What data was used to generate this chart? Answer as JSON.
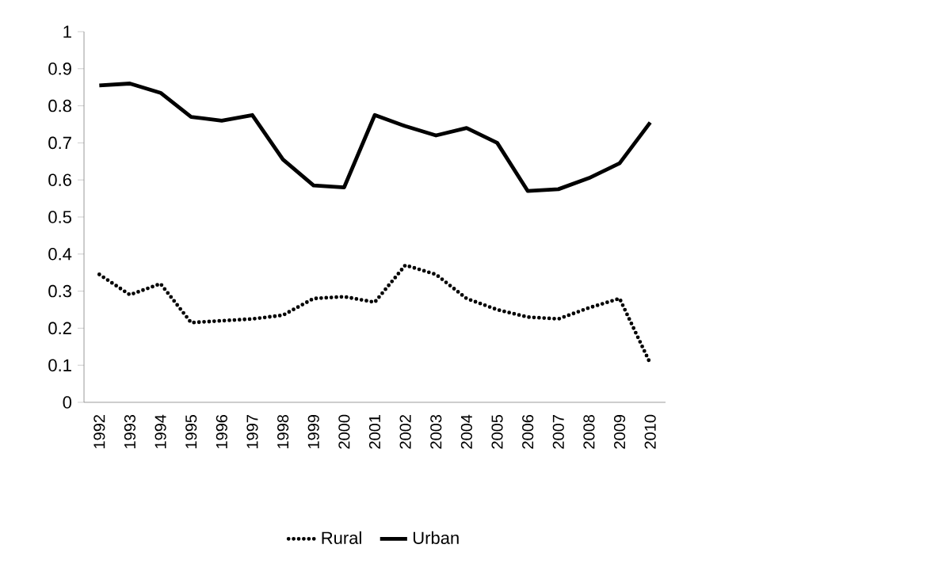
{
  "chart_data": {
    "type": "line",
    "categories": [
      "1992",
      "1993",
      "1994",
      "1995",
      "1996",
      "1997",
      "1998",
      "1999",
      "2000",
      "2001",
      "2002",
      "2003",
      "2004",
      "2005",
      "2006",
      "2007",
      "2008",
      "2009",
      "2010"
    ],
    "series": [
      {
        "name": "Rural",
        "color": "#000000",
        "line_style": "dotted",
        "values": [
          0.345,
          0.29,
          0.32,
          0.215,
          0.22,
          0.225,
          0.235,
          0.28,
          0.285,
          0.27,
          0.37,
          0.345,
          0.28,
          0.25,
          0.23,
          0.225,
          0.255,
          0.28,
          0.105
        ]
      },
      {
        "name": "Urban",
        "color": "#000000",
        "line_style": "solid",
        "values": [
          0.855,
          0.86,
          0.835,
          0.77,
          0.76,
          0.775,
          0.655,
          0.585,
          0.58,
          0.775,
          0.745,
          0.72,
          0.74,
          0.7,
          0.57,
          0.575,
          0.605,
          0.645,
          0.755
        ]
      }
    ],
    "ylim": [
      0,
      1
    ],
    "yticks": [
      0,
      0.1,
      0.2,
      0.3,
      0.4,
      0.5,
      0.6,
      0.7,
      0.8,
      0.9,
      1
    ],
    "grid": false,
    "legend": "bottom",
    "marker": "none"
  }
}
